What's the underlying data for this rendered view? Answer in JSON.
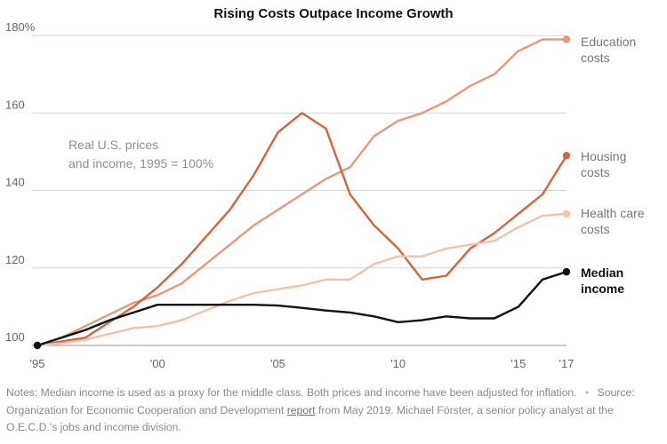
{
  "chart_data": {
    "type": "line",
    "title": "Rising Costs Outpace Income Growth",
    "annotation": [
      "Real U.S. prices",
      "and income, 1995 = 100%"
    ],
    "ylim": [
      100,
      180
    ],
    "xlim": [
      1995,
      2017
    ],
    "y_ticks": [
      {
        "value": 180,
        "label": "180%"
      },
      {
        "value": 160,
        "label": "160"
      },
      {
        "value": 140,
        "label": "140"
      },
      {
        "value": 120,
        "label": "120"
      },
      {
        "value": 100,
        "label": "100"
      }
    ],
    "x_ticks": [
      {
        "value": 1995,
        "label": "'95"
      },
      {
        "value": 2000,
        "label": "'00"
      },
      {
        "value": 2005,
        "label": "'05"
      },
      {
        "value": 2010,
        "label": "'10"
      },
      {
        "value": 2015,
        "label": "'15"
      },
      {
        "value": 2017,
        "label": "'17"
      }
    ],
    "grid": true,
    "x": [
      1995,
      1996,
      1997,
      1998,
      1999,
      2000,
      2001,
      2002,
      2003,
      2004,
      2005,
      2006,
      2007,
      2008,
      2009,
      2010,
      2011,
      2012,
      2013,
      2014,
      2015,
      2016,
      2017
    ],
    "series": [
      {
        "name": "Education costs",
        "label_lines": [
          "Education",
          "costs"
        ],
        "color": "#e39a78",
        "values": [
          100,
          102,
          105,
          108,
          111,
          113,
          116,
          121,
          126,
          131,
          135,
          139,
          143,
          146,
          154,
          158,
          160,
          163,
          167,
          170,
          176,
          179,
          179
        ]
      },
      {
        "name": "Housing costs",
        "label_lines": [
          "Housing",
          "costs"
        ],
        "color": "#d4643f",
        "values": [
          100,
          101,
          102,
          106,
          110,
          115,
          121,
          128,
          135,
          144,
          155,
          160,
          156,
          139,
          131,
          125,
          117,
          118,
          125,
          129,
          134,
          139,
          149
        ]
      },
      {
        "name": "Health care costs",
        "label_lines": [
          "Health care",
          "costs"
        ],
        "color": "#efc3ad",
        "values": [
          100,
          100.5,
          101.5,
          103,
          104.5,
          105,
          106.5,
          109,
          111.5,
          113.5,
          114.5,
          115.5,
          117,
          117,
          121,
          123,
          123,
          125,
          126,
          127,
          130.5,
          133.5,
          134
        ]
      },
      {
        "name": "Median income",
        "label_lines": [
          "Median",
          "income"
        ],
        "color": "#111111",
        "bold": true,
        "values": [
          100,
          102,
          104,
          106.5,
          108.5,
          110.5,
          110.5,
          110.5,
          110.5,
          110.5,
          110.3,
          109.7,
          109,
          108.5,
          107.5,
          106,
          106.5,
          107.5,
          107,
          107,
          110,
          117,
          119
        ]
      }
    ]
  },
  "notes": {
    "text_before_dot": "Notes: Median income is used as a proxy for the middle class. Both prices and income have been adjusted for inflation.",
    "dot": "•",
    "source_prefix": "Source: Organization for Economic Cooperation and Development",
    "link_text": "report",
    "source_suffix": "from May 2019. Michael Förster, a senior policy analyst at the O.E.C.D.'s jobs and income division."
  }
}
